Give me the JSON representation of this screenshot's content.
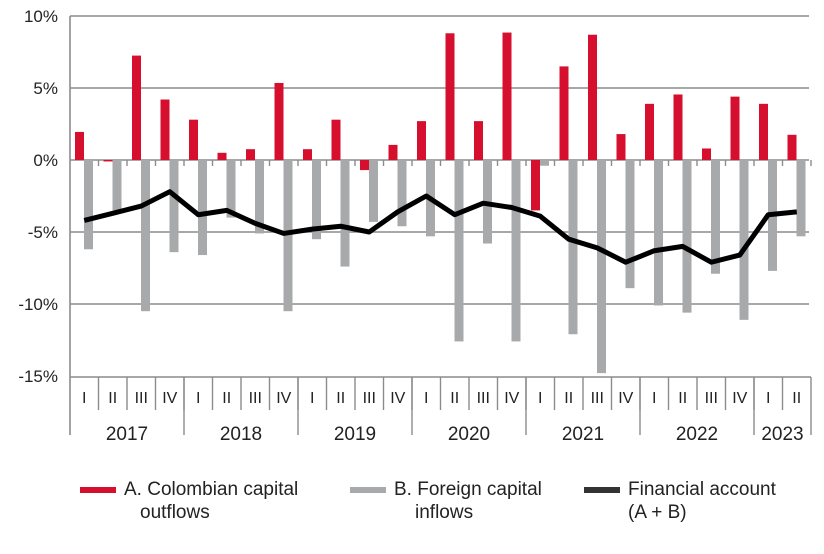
{
  "chart_data": {
    "type": "bar+line",
    "categories": [
      "I",
      "II",
      "III",
      "IV",
      "I",
      "II",
      "III",
      "IV",
      "I",
      "II",
      "III",
      "IV",
      "I",
      "II",
      "III",
      "IV",
      "I",
      "II",
      "III",
      "IV",
      "I",
      "II",
      "III",
      "IV",
      "I",
      "II"
    ],
    "years": [
      {
        "label": "2017",
        "quarters": 4
      },
      {
        "label": "2018",
        "quarters": 4
      },
      {
        "label": "2019",
        "quarters": 4
      },
      {
        "label": "2020",
        "quarters": 4
      },
      {
        "label": "2021",
        "quarters": 4
      },
      {
        "label": "2022",
        "quarters": 4
      },
      {
        "label": "2023",
        "quarters": 2
      }
    ],
    "series": [
      {
        "name": "A. Colombian capital outflows",
        "type": "bar",
        "color": "#d50f2d",
        "values": [
          1.95,
          -0.1,
          7.25,
          4.2,
          2.8,
          0.5,
          0.75,
          5.35,
          0.75,
          2.8,
          -0.7,
          1.05,
          2.7,
          8.8,
          2.7,
          8.85,
          -3.5,
          6.5,
          8.7,
          1.8,
          3.9,
          4.55,
          0.8,
          4.4,
          3.9,
          1.75
        ]
      },
      {
        "name": "B. Foreign capital inflows",
        "type": "bar",
        "color": "#a7a9ab",
        "values": [
          -6.2,
          -3.5,
          -10.5,
          -6.4,
          -6.6,
          -4.0,
          -5.1,
          -10.5,
          -5.5,
          -7.4,
          -4.3,
          -4.6,
          -5.3,
          -12.6,
          -5.8,
          -12.6,
          -0.4,
          -12.1,
          -14.8,
          -8.9,
          -10.1,
          -10.6,
          -7.9,
          -11.1,
          -7.7,
          -5.3
        ]
      },
      {
        "name": "Financial account (A + B)",
        "type": "line",
        "color": "#000000",
        "values": [
          -4.2,
          -3.7,
          -3.2,
          -2.2,
          -3.8,
          -3.5,
          -4.4,
          -5.1,
          -4.8,
          -4.6,
          -5.0,
          -3.6,
          -2.5,
          -3.8,
          -3.0,
          -3.3,
          -3.9,
          -5.5,
          -6.1,
          -7.1,
          -6.3,
          -6.0,
          -7.1,
          -6.6,
          -3.8,
          -3.6
        ]
      }
    ],
    "legend_lines": [
      [
        "A. Colombian capital",
        "outflows"
      ],
      [
        "B. Foreign capital",
        "inflows"
      ],
      [
        "Financial account",
        "(A + B)"
      ]
    ],
    "yticks": [
      10,
      5,
      0,
      -5,
      -10,
      -15
    ],
    "ytick_labels": [
      "10%",
      "5%",
      "0%",
      "-5%",
      "-10%",
      "-15%"
    ],
    "ylim": [
      -15,
      10
    ],
    "grid": true,
    "legend_position": "bottom"
  }
}
